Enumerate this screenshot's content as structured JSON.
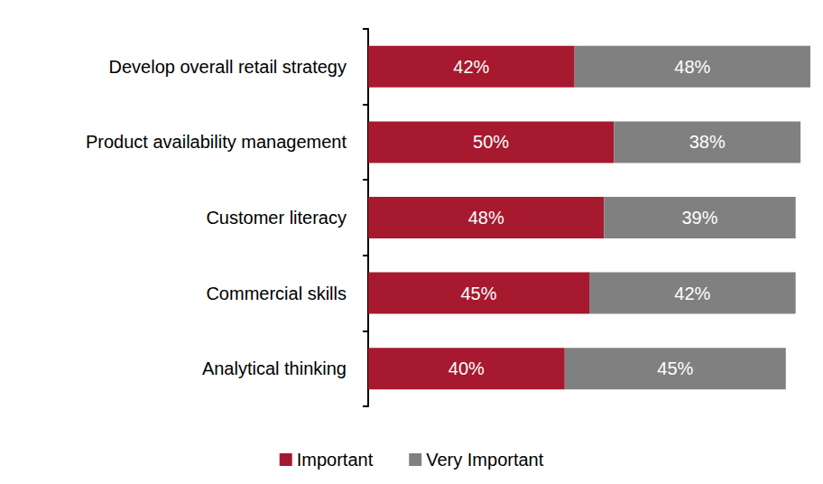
{
  "chart_data": {
    "type": "bar",
    "orientation": "horizontal",
    "stacked": true,
    "data_labels": true,
    "grid": false,
    "legend": "bottom",
    "tick_labels": "y",
    "categories": [
      "Develop overall retail strategy",
      "Product availability management",
      "Customer literacy",
      "Commercial skills",
      "Analytical thinking"
    ],
    "xlim": [
      0,
      90
    ],
    "series": [
      {
        "name": "Important",
        "color": "#A6192E",
        "values": [
          42,
          50,
          48,
          45,
          40
        ],
        "value_labels": [
          "42%",
          "50%",
          "48%",
          "45%",
          "40%"
        ]
      },
      {
        "name": "Very Important",
        "color": "#808080",
        "values": [
          48,
          38,
          39,
          42,
          45
        ],
        "value_labels": [
          "48%",
          "38%",
          "39%",
          "42%",
          "45%"
        ]
      }
    ]
  }
}
